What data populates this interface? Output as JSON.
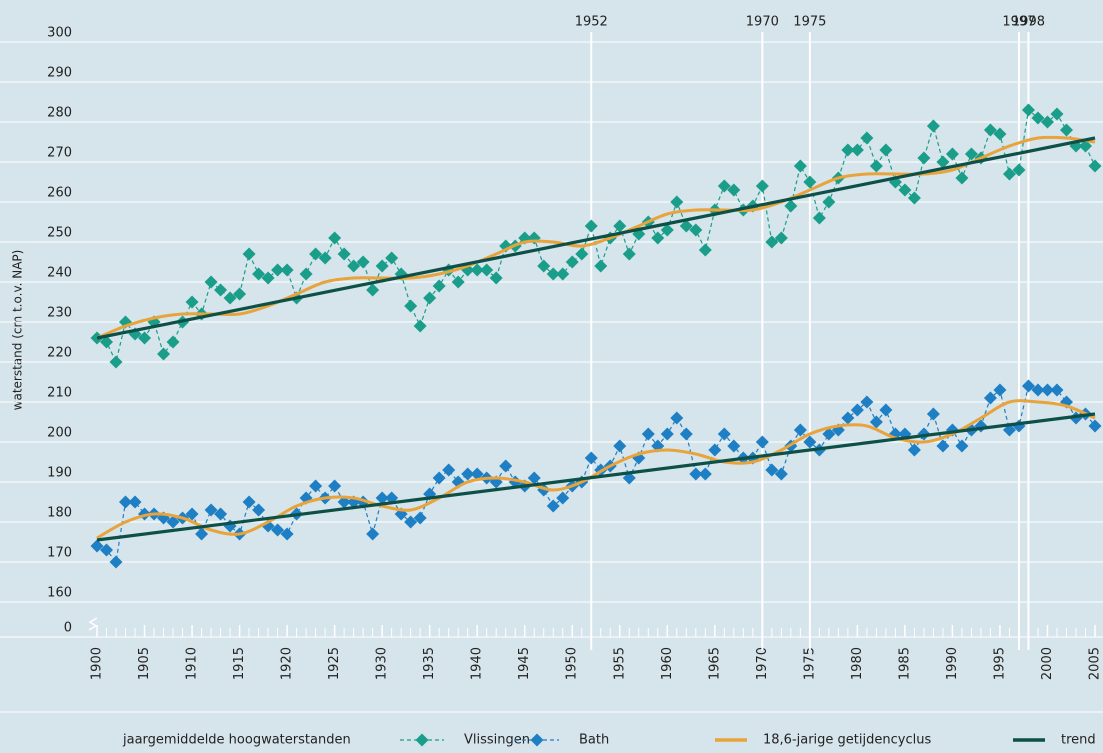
{
  "chart_data": {
    "type": "line",
    "y_label": "waterstand (cm t.o.v. NAP)",
    "legend_title": "jaargemiddelde hoogwaterstanden",
    "ylim": [
      151.25,
      300
    ],
    "yticks": [
      0,
      160,
      170,
      180,
      190,
      200,
      210,
      220,
      230,
      240,
      250,
      260,
      270,
      280,
      290,
      300
    ],
    "axis_break": true,
    "xlim": [
      1900,
      2005
    ],
    "xticks": [
      1900,
      1905,
      1910,
      1915,
      1920,
      1925,
      1930,
      1935,
      1940,
      1945,
      1950,
      1955,
      1960,
      1965,
      1970,
      1975,
      1980,
      1985,
      1990,
      1995,
      2000,
      2005
    ],
    "vlines": [
      1952,
      1970,
      1975,
      1997,
      1998
    ],
    "grid": true,
    "x": [
      1900,
      1901,
      1902,
      1903,
      1904,
      1905,
      1906,
      1907,
      1908,
      1909,
      1910,
      1911,
      1912,
      1913,
      1914,
      1915,
      1916,
      1917,
      1918,
      1919,
      1920,
      1921,
      1922,
      1923,
      1924,
      1925,
      1926,
      1927,
      1928,
      1929,
      1930,
      1931,
      1932,
      1933,
      1934,
      1935,
      1936,
      1937,
      1938,
      1939,
      1940,
      1941,
      1942,
      1943,
      1944,
      1945,
      1946,
      1947,
      1948,
      1949,
      1950,
      1951,
      1952,
      1953,
      1954,
      1955,
      1956,
      1957,
      1958,
      1959,
      1960,
      1961,
      1962,
      1963,
      1964,
      1965,
      1966,
      1967,
      1968,
      1969,
      1970,
      1971,
      1972,
      1973,
      1974,
      1975,
      1976,
      1977,
      1978,
      1979,
      1980,
      1981,
      1982,
      1983,
      1984,
      1985,
      1986,
      1987,
      1988,
      1989,
      1990,
      1991,
      1992,
      1993,
      1994,
      1995,
      1996,
      1997,
      1998,
      1999,
      2000,
      2001,
      2002,
      2003,
      2004,
      2005
    ],
    "series": [
      {
        "name": "Vlissingen",
        "color": "#1a9e8a",
        "style": "dashed-marker",
        "values": [
          226,
          225,
          220,
          230,
          227,
          226,
          230,
          222,
          225,
          230,
          235,
          232,
          240,
          238,
          236,
          237,
          247,
          242,
          241,
          243,
          243,
          236,
          242,
          247,
          246,
          251,
          247,
          244,
          245,
          238,
          244,
          246,
          242,
          234,
          229,
          236,
          239,
          243,
          240,
          243,
          243,
          243,
          241,
          249,
          249,
          251,
          251,
          244,
          242,
          242,
          245,
          247,
          254,
          244,
          251,
          254,
          247,
          252,
          255,
          251,
          253,
          260,
          254,
          253,
          248,
          258,
          264,
          263,
          258,
          259,
          264,
          250,
          251,
          259,
          269,
          265,
          256,
          260,
          266,
          273,
          273,
          276,
          269,
          273,
          265,
          263,
          261,
          271,
          279,
          270,
          272,
          266,
          272,
          271,
          278,
          277,
          267,
          268,
          283,
          281,
          280,
          282,
          278,
          274,
          274,
          269
        ]
      },
      {
        "name": "Bath",
        "color": "#1f7fc4",
        "style": "dashed-marker",
        "values": [
          174,
          173,
          170,
          185,
          185,
          182,
          182,
          181,
          180,
          181,
          182,
          177,
          183,
          182,
          179,
          177,
          185,
          183,
          179,
          178,
          177,
          182,
          186,
          189,
          186,
          189,
          185,
          185,
          185,
          177,
          186,
          186,
          182,
          180,
          181,
          187,
          191,
          193,
          190,
          192,
          192,
          191,
          190,
          194,
          190,
          189,
          191,
          188,
          184,
          186,
          189,
          190,
          196,
          193,
          194,
          199,
          191,
          196,
          202,
          199,
          202,
          206,
          202,
          192,
          192,
          198,
          202,
          199,
          196,
          196,
          200,
          193,
          192,
          199,
          203,
          200,
          198,
          202,
          203,
          206,
          208,
          210,
          205,
          208,
          202,
          202,
          198,
          202,
          207,
          199,
          203,
          199,
          203,
          204,
          211,
          213,
          203,
          204,
          214,
          213,
          213,
          213,
          210,
          206,
          207,
          204
        ]
      },
      {
        "name": "18,6-jarige getijdencyclus",
        "color": "#e8a33a",
        "style": "smooth",
        "x": [
          1900,
          1903,
          1906,
          1909,
          1912,
          1915,
          1918,
          1921,
          1924,
          1927,
          1930,
          1933,
          1936,
          1939,
          1942,
          1945,
          1948,
          1951,
          1954,
          1957,
          1960,
          1963,
          1966,
          1969,
          1972,
          1975,
          1978,
          1981,
          1984,
          1987,
          1990,
          1993,
          1996,
          1999,
          2002,
          2005
        ],
        "values": [
          [
            226,
            229,
            231,
            232,
            232,
            232,
            234,
            237,
            240,
            241,
            241,
            241,
            242,
            244,
            247,
            250,
            250,
            249,
            251,
            254,
            257,
            258,
            258,
            258,
            260,
            263,
            266,
            267,
            267,
            267,
            268,
            271,
            274,
            276,
            276,
            275
          ],
          [
            176,
            180,
            182,
            181,
            178,
            177,
            180,
            184,
            186,
            186,
            184,
            183,
            186,
            190,
            191,
            190,
            188,
            190,
            194,
            197,
            198,
            197,
            195,
            195,
            198,
            202,
            204,
            204,
            201,
            200,
            202,
            206,
            210,
            210,
            209,
            206
          ]
        ]
      },
      {
        "name": "trend",
        "color": "#0d5048",
        "style": "straight",
        "x": [
          1900,
          2005
        ],
        "values": [
          [
            226,
            276
          ],
          [
            175.5,
            207
          ]
        ]
      }
    ]
  }
}
